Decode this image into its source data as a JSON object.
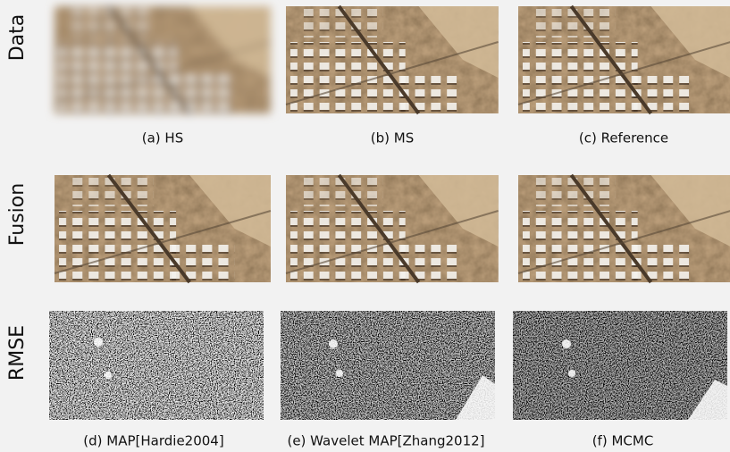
{
  "row_labels": [
    "Data",
    "Fusion",
    "RMSE"
  ],
  "captions": [
    "(a) HS",
    "(b) MS",
    "(c) Reference",
    "(d) MAP[Hardie2004]",
    "(e) Wavelet MAP[Zhang2012]",
    "(f) MCMC"
  ]
}
